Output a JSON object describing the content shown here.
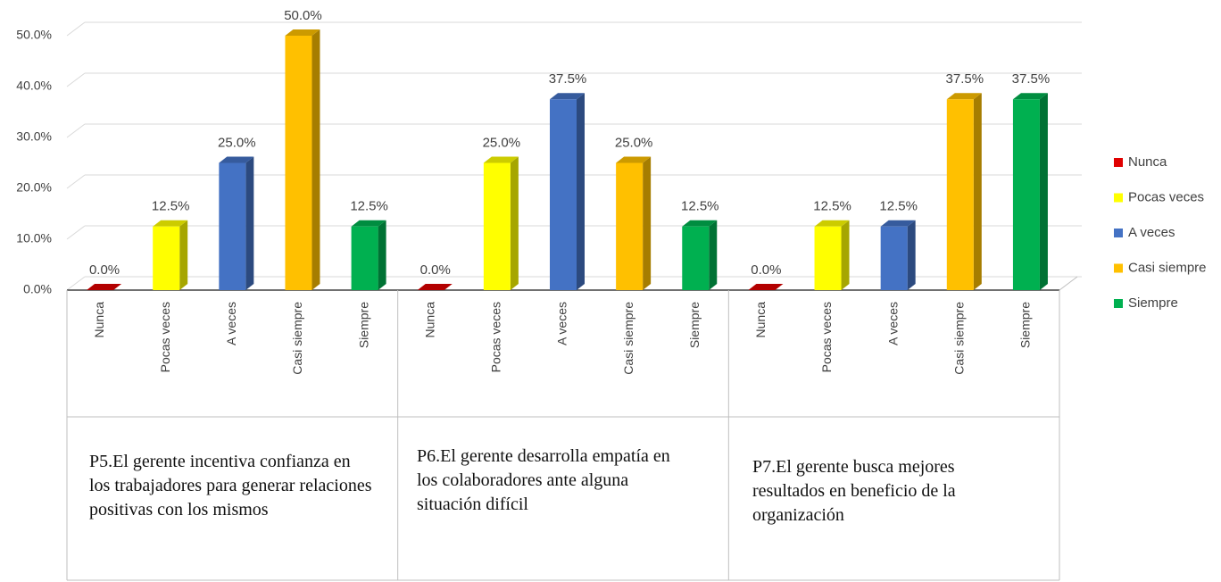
{
  "chart_data": {
    "type": "bar",
    "categories": [
      "P5.El gerente incentiva confianza en los trabajadores para generar relaciones positivas con los mismos",
      "P6.El gerente desarrolla empatía en los colaboradores ante alguna situación difícil",
      "P7.El gerente busca mejores resultados en beneficio de la organización"
    ],
    "series": [
      {
        "name": "Nunca",
        "color": "#e00000",
        "values": [
          0,
          0,
          0
        ],
        "value_labels": [
          "0.0%",
          "0.0%",
          "0.0%"
        ]
      },
      {
        "name": "Pocas veces",
        "color": "#ffff00",
        "values": [
          12.5,
          25,
          12.5
        ],
        "value_labels": [
          "12.5%",
          "25.0%",
          "12.5%"
        ]
      },
      {
        "name": "A veces",
        "color": "#4472c4",
        "values": [
          25,
          37.5,
          12.5
        ],
        "value_labels": [
          "25.0%",
          "37.5%",
          "12.5%"
        ]
      },
      {
        "name": "Casi siempre",
        "color": "#ffc000",
        "values": [
          50,
          25,
          37.5
        ],
        "value_labels": [
          "50.0%",
          "25.0%",
          "37.5%"
        ]
      },
      {
        "name": "Siempre",
        "color": "#00b050",
        "values": [
          12.5,
          12.5,
          37.5
        ],
        "value_labels": [
          "12.5%",
          "12.5%",
          "37.5%"
        ]
      }
    ],
    "ylim": [
      0,
      50
    ],
    "yticks": [
      {
        "value": 0,
        "label": "0.0%"
      },
      {
        "value": 10,
        "label": "10.0%"
      },
      {
        "value": 20,
        "label": "20.0%"
      },
      {
        "value": 30,
        "label": "30.0%"
      },
      {
        "value": 40,
        "label": "40.0%"
      },
      {
        "value": 50,
        "label": "50.0%"
      }
    ],
    "grid": true,
    "legend": "right"
  }
}
